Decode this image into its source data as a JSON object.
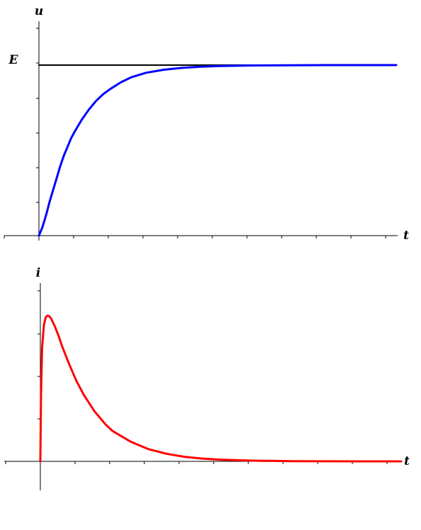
{
  "chart_data": [
    {
      "type": "line",
      "panel": "top",
      "ylabel": "u",
      "xlabel": "t",
      "annotation": "E",
      "E": 1.0,
      "xlim": [
        0,
        10
      ],
      "ylim": [
        0,
        1.25
      ],
      "grid": false,
      "series": [
        {
          "role": "asymptote",
          "color": "#000000",
          "x": [
            0,
            10
          ],
          "y": [
            1.0,
            1.0
          ]
        },
        {
          "role": "u(t)",
          "color": "#0000ff",
          "x": [
            0,
            0.1,
            0.2,
            0.3,
            0.4,
            0.5,
            0.6,
            0.7,
            0.8,
            0.9,
            1.0,
            1.2,
            1.4,
            1.6,
            1.8,
            2.0,
            2.3,
            2.6,
            3.0,
            3.5,
            4.0,
            4.5,
            5.0,
            6.0,
            7.0,
            8.0,
            9.0,
            10.0
          ],
          "y": [
            0,
            0.05,
            0.12,
            0.2,
            0.27,
            0.34,
            0.41,
            0.47,
            0.52,
            0.57,
            0.61,
            0.68,
            0.74,
            0.79,
            0.83,
            0.86,
            0.9,
            0.93,
            0.955,
            0.973,
            0.984,
            0.99,
            0.994,
            0.998,
            0.999,
            1.0,
            1.0,
            1.0
          ]
        }
      ]
    },
    {
      "type": "line",
      "panel": "bottom",
      "ylabel": "i",
      "xlabel": "t",
      "xlim": [
        0,
        10
      ],
      "ylim": [
        -0.2,
        1.2
      ],
      "grid": false,
      "series": [
        {
          "role": "i(t)",
          "color": "#ff0000",
          "x": [
            0,
            0.02,
            0.05,
            0.1,
            0.15,
            0.2,
            0.25,
            0.3,
            0.4,
            0.5,
            0.6,
            0.8,
            1.0,
            1.2,
            1.5,
            1.8,
            2.0,
            2.5,
            3.0,
            3.5,
            4.0,
            4.5,
            5.0,
            6.0,
            7.0,
            8.0,
            9.0,
            10.0
          ],
          "y": [
            0,
            0.45,
            0.75,
            0.9,
            0.95,
            0.96,
            0.955,
            0.94,
            0.89,
            0.83,
            0.76,
            0.64,
            0.53,
            0.44,
            0.33,
            0.245,
            0.2,
            0.13,
            0.08,
            0.05,
            0.03,
            0.018,
            0.011,
            0.004,
            0.0015,
            0.0005,
            0.0002,
            0.0
          ]
        }
      ]
    }
  ]
}
